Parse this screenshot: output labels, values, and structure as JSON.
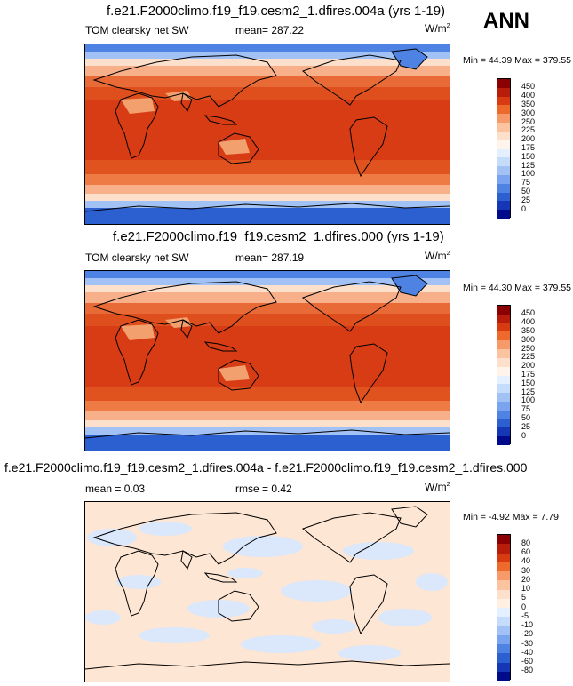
{
  "corner_label": "ANN",
  "panels": [
    {
      "title": "f.e21.F2000climo.f19_f19.cesm2_1.dfires.004a (yrs 1-19)",
      "left_label": "TOM clearsky net SW",
      "mean_text": "mean= 287.22",
      "units": "W/m",
      "units_sup": "2",
      "minmax": "Min =  44.39 Max = 379.55"
    },
    {
      "title": "f.e21.F2000climo.f19_f19.cesm2_1.dfires.000 (yrs 1-19)",
      "left_label": "TOM clearsky net SW",
      "mean_text": "mean= 287.19",
      "units": "W/m",
      "units_sup": "2",
      "minmax": "Min =  44.30 Max = 379.55"
    },
    {
      "title": "f.e21.F2000climo.f19_f19.cesm2_1.dfires.004a - f.e21.F2000climo.f19_f19.cesm2_1.dfires.000",
      "left_label": "mean =   0.03",
      "mean_text": "rmse =   0.42",
      "units": "W/m",
      "units_sup": "2",
      "minmax": "Min =  -4.92 Max =  7.79"
    }
  ],
  "colorbar_abs": {
    "labels": [
      "450",
      "400",
      "350",
      "300",
      "250",
      "225",
      "200",
      "175",
      "150",
      "125",
      "100",
      "75",
      "50",
      "25",
      "0"
    ],
    "colors": [
      "#8b0000",
      "#b81d0c",
      "#d83a12",
      "#ee6a2c",
      "#f69a6a",
      "#fbc3a0",
      "#fde0cc",
      "#fff4ec",
      "#e4efff",
      "#c6dcfb",
      "#a2c2f6",
      "#7aa4ef",
      "#4e82e3",
      "#2c5fd0",
      "#1637b5",
      "#000b8c"
    ]
  },
  "colorbar_diff": {
    "labels": [
      "80",
      "60",
      "40",
      "30",
      "20",
      "10",
      "5",
      "0",
      "-5",
      "-10",
      "-20",
      "-30",
      "-40",
      "-60",
      "-80"
    ],
    "colors": [
      "#8b0000",
      "#b81d0c",
      "#d83a12",
      "#ee6a2c",
      "#f69a6a",
      "#fbc3a0",
      "#fde0cc",
      "#fff0e2",
      "#e4efff",
      "#c6dcfb",
      "#a2c2f6",
      "#7aa4ef",
      "#4e82e3",
      "#2c5fd0",
      "#1637b5",
      "#000b8c"
    ]
  }
}
